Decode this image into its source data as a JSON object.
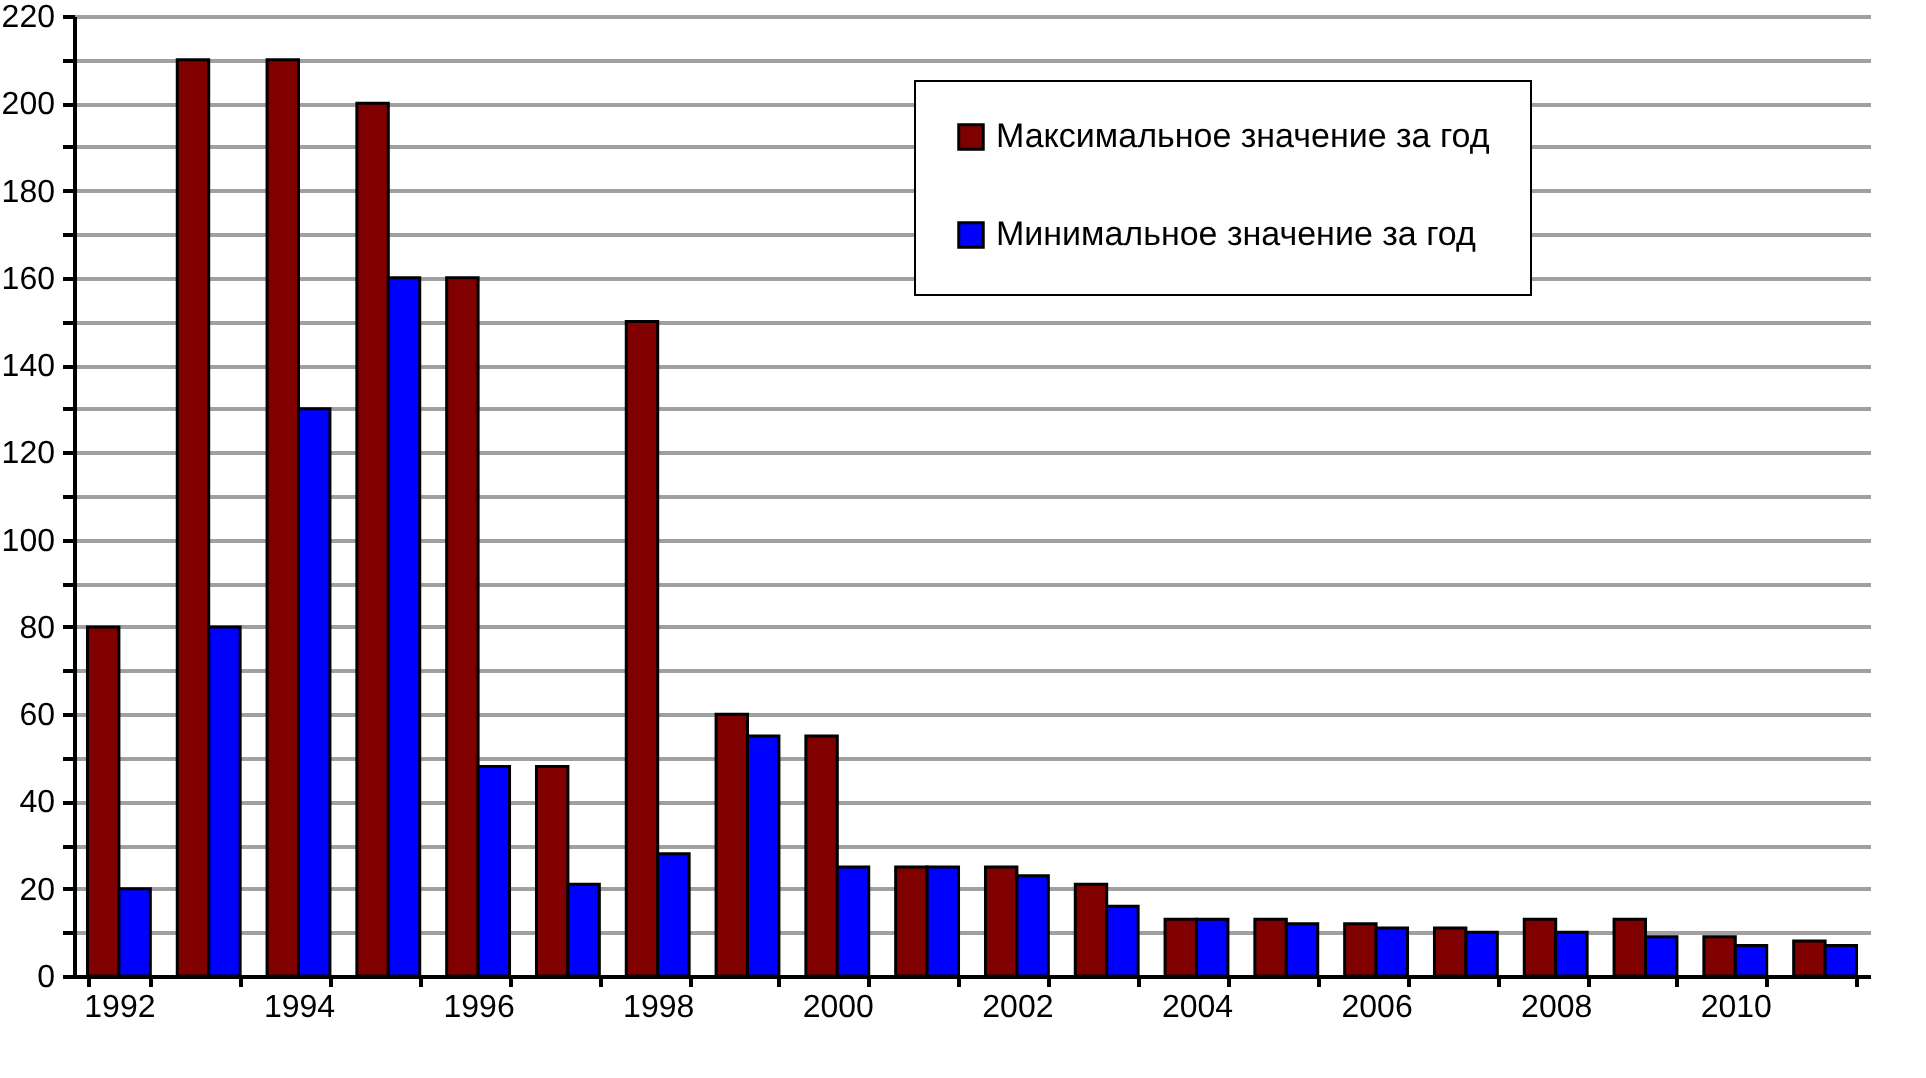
{
  "chart_data": {
    "type": "bar",
    "categories": [
      "1992",
      null,
      "1994",
      null,
      "1996",
      null,
      "1998",
      null,
      "2000",
      null,
      "2002",
      null,
      "2004",
      null,
      "2006",
      null,
      "2008",
      null,
      "2010",
      null
    ],
    "series": [
      {
        "name": "Максимальное значение за год",
        "color": "#800000",
        "values": [
          80,
          210,
          210,
          200,
          160,
          48,
          150,
          60,
          55,
          25,
          25,
          21,
          13,
          13,
          12,
          11,
          13,
          13,
          9,
          8
        ]
      },
      {
        "name": "Минимальное значение за год",
        "color": "#0000ff",
        "values": [
          20,
          80,
          130,
          160,
          48,
          21,
          28,
          55,
          25,
          25,
          23,
          16,
          13,
          12,
          11,
          10,
          10,
          9,
          7,
          7
        ]
      }
    ],
    "ylim": [
      0,
      220
    ],
    "yticks": [
      0,
      {
        "value": 10,
        "label": null
      },
      20,
      {
        "value": 30,
        "label": null
      },
      40,
      {
        "value": 50,
        "label": null
      },
      60,
      {
        "value": 70,
        "label": null
      },
      80,
      {
        "value": 90,
        "label": null
      },
      100,
      {
        "value": 110,
        "label": null
      },
      120,
      {
        "value": 130,
        "label": null
      },
      140,
      {
        "value": 150,
        "label": null
      },
      160,
      {
        "value": 170,
        "label": null
      },
      180,
      {
        "value": 190,
        "label": null
      },
      200,
      {
        "value": 210,
        "label": null
      },
      220
    ],
    "grid": "y",
    "legend": "top right"
  }
}
